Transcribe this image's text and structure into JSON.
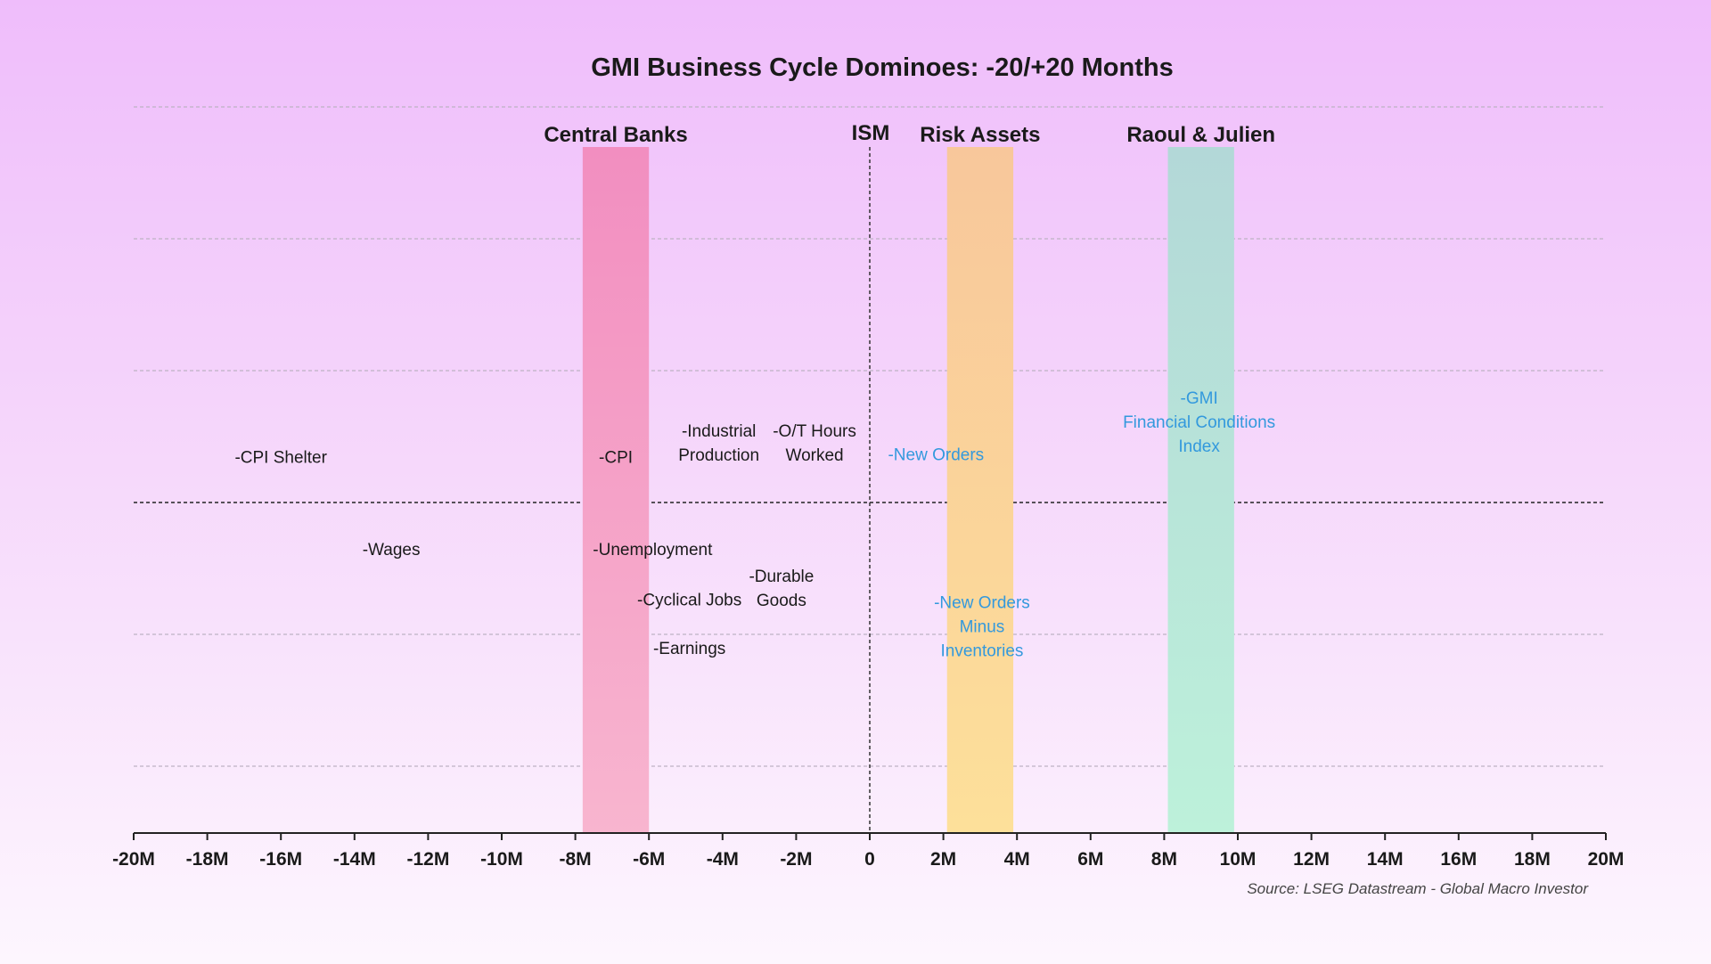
{
  "chart_data": {
    "type": "timeline",
    "title": "GMI Business Cycle Dominoes: -20/+20 Months",
    "xlim": [
      -20,
      20
    ],
    "x_ticks": [
      -20,
      -18,
      -16,
      -14,
      -12,
      -10,
      -8,
      -6,
      -4,
      -2,
      0,
      2,
      4,
      6,
      8,
      10,
      12,
      14,
      16,
      18,
      20
    ],
    "x_tick_labels": [
      "-20M",
      "-18M",
      "-16M",
      "-14M",
      "-12M",
      "-10M",
      "-8M",
      "-6M",
      "-4M",
      "-2M",
      "0",
      "2M",
      "4M",
      "6M",
      "8M",
      "10M",
      "12M",
      "14M",
      "16M",
      "18M",
      "20M"
    ],
    "ylim": [
      -5,
      5
    ],
    "grid_y": [
      4,
      3,
      2,
      1,
      -1,
      -2
    ],
    "zero_line_y": 0,
    "reference_line": {
      "x": 0,
      "label": "ISM"
    },
    "bands": [
      {
        "name": "Central Banks",
        "x0": -7.8,
        "x1": -6.0,
        "color_top": "#f28ec0",
        "color_bottom": "#f8b5cf"
      },
      {
        "name": "Risk Assets",
        "x0": 2.1,
        "x1": 3.9,
        "color_top": "#f8c79b",
        "color_bottom": "#fde09a"
      },
      {
        "name": "Raoul & Julien",
        "x0": 8.1,
        "x1": 9.9,
        "color_top": "#b3d8d8",
        "color_bottom": "#bdf1da"
      }
    ],
    "annotations": [
      {
        "lines": [
          "-CPI Shelter"
        ],
        "x": -16.0,
        "y": 0.3,
        "color": "#1a1a1a"
      },
      {
        "lines": [
          "-CPI"
        ],
        "x": -6.9,
        "y": 0.3,
        "color": "#1a1a1a"
      },
      {
        "lines": [
          "-Industrial",
          "Production"
        ],
        "x": -4.1,
        "y": 0.5,
        "color": "#1a1a1a"
      },
      {
        "lines": [
          "-O/T Hours",
          "Worked"
        ],
        "x": -1.5,
        "y": 0.5,
        "color": "#1a1a1a"
      },
      {
        "lines": [
          "-New Orders"
        ],
        "x": 1.8,
        "y": 0.32,
        "color": "#3399dd"
      },
      {
        "lines": [
          "-GMI",
          "Financial Conditions",
          "Index"
        ],
        "x": 8.95,
        "y": 0.75,
        "color": "#3399dd"
      },
      {
        "lines": [
          "-Wages"
        ],
        "x": -13.0,
        "y": -0.4,
        "color": "#1a1a1a"
      },
      {
        "lines": [
          "-Unemployment"
        ],
        "x": -5.9,
        "y": -0.4,
        "color": "#1a1a1a"
      },
      {
        "lines": [
          "-Durable",
          "Goods"
        ],
        "x": -2.4,
        "y": -0.6,
        "color": "#1a1a1a"
      },
      {
        "lines": [
          "-Cyclical Jobs"
        ],
        "x": -4.9,
        "y": -0.78,
        "color": "#1a1a1a"
      },
      {
        "lines": [
          "-Earnings"
        ],
        "x": -4.9,
        "y": -1.15,
        "color": "#1a1a1a"
      },
      {
        "lines": [
          "-New Orders",
          "Minus",
          "Inventories"
        ],
        "x": 3.05,
        "y": -0.8,
        "color": "#3399dd"
      }
    ],
    "source": "Source: LSEG Datastream - Global Macro Investor"
  }
}
